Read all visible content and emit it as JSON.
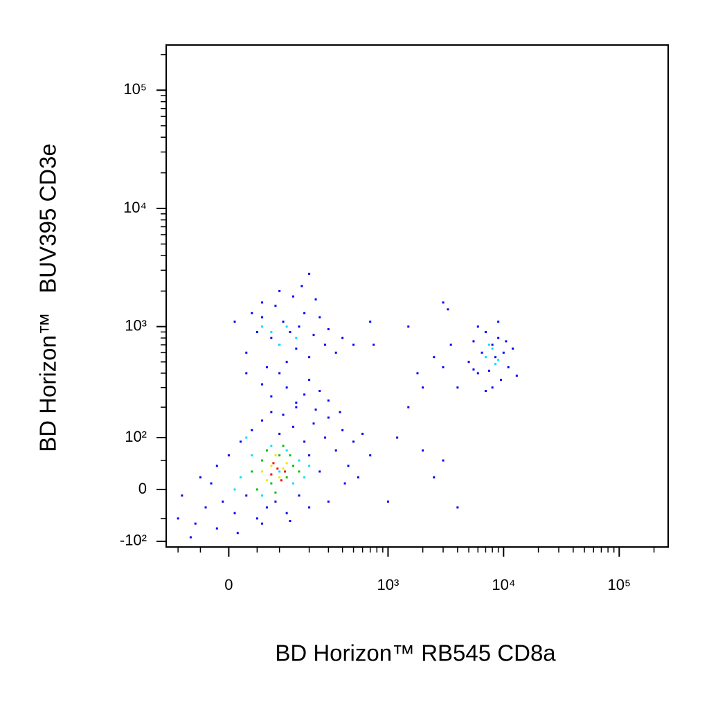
{
  "chart_data": {
    "type": "scatter",
    "xlabel": "BD Horizon™ RB545 CD8a",
    "ylabel": "BD Horizon™   BUV395 CD3e",
    "xscale": "biexponential",
    "yscale": "biexponential",
    "xlim": [
      -134,
      265000
    ],
    "ylim": [
      -115,
      241000
    ],
    "xticks": [
      0,
      {
        "value": 1000,
        "label": "10³"
      },
      {
        "value": 10000,
        "label": "10⁴"
      },
      {
        "value": 100000,
        "label": "10⁵"
      }
    ],
    "yticks": [
      {
        "value": -100,
        "label": "-10²"
      },
      0,
      {
        "value": 100,
        "label": "10²"
      },
      {
        "value": 1000,
        "label": "10³"
      },
      {
        "value": 10000,
        "label": "10⁴"
      },
      {
        "value": 100000,
        "label": "10⁵"
      }
    ],
    "xminorticks": [
      -100,
      -50,
      50,
      100,
      200,
      300,
      400,
      500,
      600,
      700,
      800,
      900,
      2000,
      3000,
      4000,
      5000,
      6000,
      7000,
      8000,
      9000,
      20000,
      30000,
      40000,
      50000,
      60000,
      70000,
      80000,
      90000,
      200000
    ],
    "yminorticks": [
      -50,
      50,
      200,
      300,
      400,
      500,
      600,
      700,
      800,
      900,
      2000,
      3000,
      4000,
      5000,
      6000,
      7000,
      8000,
      9000,
      20000,
      30000,
      40000,
      50000,
      60000,
      70000,
      80000,
      90000,
      200000
    ],
    "series": [
      {
        "color": "#0000ff",
        "x": [
          -30,
          -20,
          -10,
          0,
          10,
          20,
          30,
          40,
          50,
          60,
          70,
          80,
          90,
          100,
          120,
          140,
          160,
          180,
          200,
          220,
          250,
          280,
          300,
          350,
          400,
          450,
          500,
          550,
          600,
          -40,
          -50,
          -20,
          15,
          60,
          130,
          200,
          110,
          150,
          230,
          300,
          380,
          420,
          700,
          -60,
          -100,
          -90,
          -70,
          80,
          120,
          150,
          200,
          250,
          100,
          180,
          300,
          60,
          30,
          50,
          60,
          70,
          80,
          90,
          100,
          110,
          120,
          130,
          140,
          150,
          160,
          180,
          200,
          220,
          250,
          280,
          300,
          350,
          400,
          60,
          40,
          170,
          200,
          100,
          230,
          500,
          30,
          10,
          5000,
          5500,
          6000,
          6500,
          7000,
          7500,
          8000,
          8500,
          9000,
          9500,
          10000,
          11000,
          12000,
          6000,
          8000,
          9000,
          7000,
          13000,
          5500,
          10500,
          1200,
          2000,
          3000,
          2500,
          4000,
          1500,
          2000,
          3000,
          3500,
          2500,
          1800,
          4000,
          3000,
          3300,
          1500,
          700,
          750,
          1000
        ],
        "y": [
          10,
          40,
          -20,
          60,
          -40,
          90,
          -10,
          120,
          -50,
          150,
          -30,
          180,
          -20,
          110,
          -40,
          130,
          -10,
          90,
          60,
          140,
          30,
          100,
          -20,
          70,
          120,
          40,
          90,
          20,
          110,
          -30,
          20,
          -70,
          -80,
          -60,
          -55,
          -30,
          170,
          200,
          190,
          160,
          180,
          10,
          60,
          -60,
          -50,
          -10,
          -90,
          250,
          300,
          220,
          350,
          280,
          400,
          260,
          230,
          320,
          600,
          900,
          1200,
          450,
          800,
          1500,
          700,
          1100,
          500,
          900,
          1800,
          650,
          1000,
          1300,
          550,
          850,
          1200,
          700,
          950,
          600,
          800,
          1600,
          1300,
          2200,
          2800,
          2000,
          1700,
          700,
          400,
          1100,
          500,
          750,
          400,
          600,
          900,
          420,
          700,
          550,
          800,
          350,
          600,
          450,
          650,
          1000,
          300,
          1100,
          280,
          380,
          430,
          750,
          100,
          70,
          50,
          20,
          -30,
          200,
          300,
          450,
          700,
          550,
          400,
          300,
          1600,
          1400,
          1000,
          1100,
          700,
          -20
        ]
      },
      {
        "color": "#00e0ff",
        "x": [
          20,
          40,
          60,
          80,
          100,
          120,
          140,
          160,
          180,
          30,
          200,
          10,
          80,
          120,
          150,
          100,
          60,
          7000,
          8000,
          8500,
          7500,
          9000
        ],
        "y": [
          20,
          60,
          -10,
          80,
          30,
          70,
          10,
          50,
          20,
          100,
          40,
          0,
          900,
          1000,
          800,
          700,
          1000,
          550,
          650,
          480,
          700,
          520
        ]
      },
      {
        "color": "#00c000",
        "x": [
          40,
          60,
          80,
          100,
          120,
          140,
          50,
          90,
          110,
          70,
          130,
          160
        ],
        "y": [
          30,
          50,
          10,
          60,
          20,
          40,
          0,
          -5,
          80,
          70,
          60,
          30
        ]
      },
      {
        "color": "#e8e800",
        "x": [
          60,
          80,
          100,
          120,
          70,
          90,
          110
        ],
        "y": [
          30,
          40,
          20,
          45,
          15,
          60,
          35
        ]
      },
      {
        "color": "#ff0000",
        "x": [
          80,
          95,
          105,
          85,
          115
        ],
        "y": [
          25,
          35,
          15,
          45,
          30
        ]
      }
    ]
  }
}
